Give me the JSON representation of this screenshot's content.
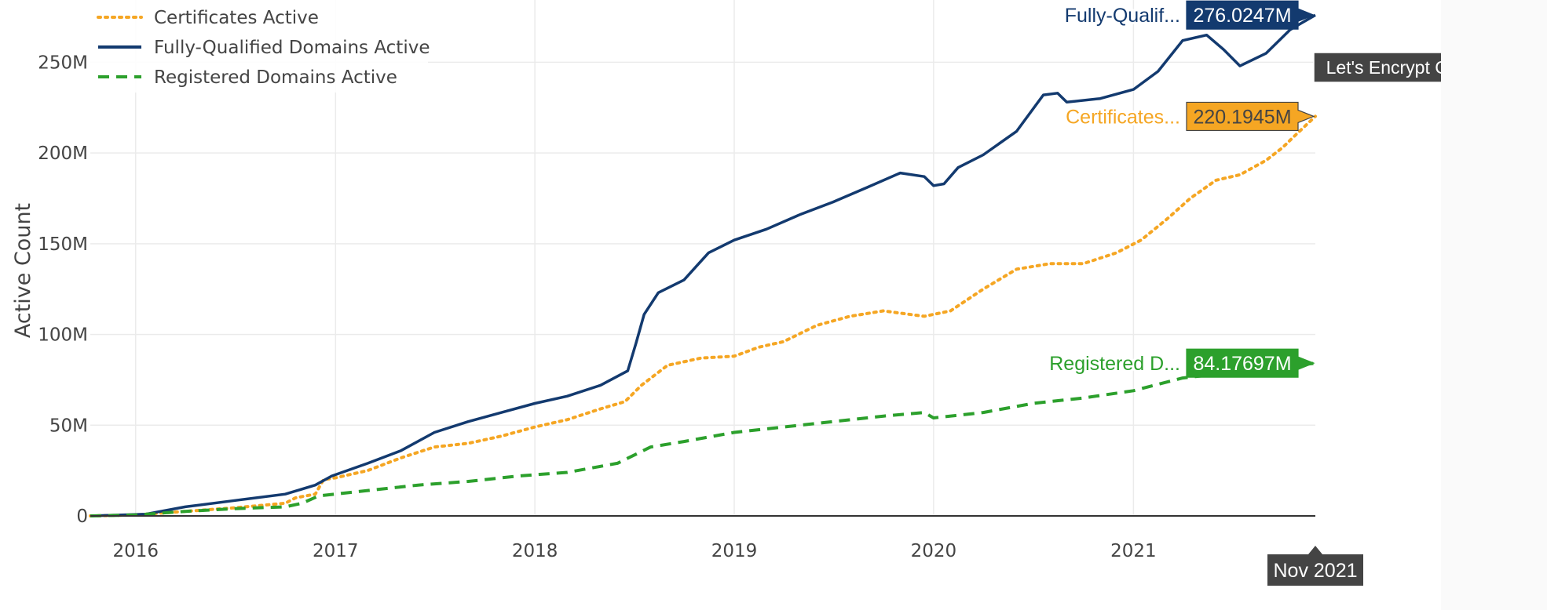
{
  "chart_data": {
    "type": "line",
    "ylabel": "Active Count",
    "xlabel": "",
    "title": "",
    "x_range": [
      "2015-10-10",
      "2021-11-30"
    ],
    "ylim": [
      0,
      280
    ],
    "y_unit": "M",
    "y_ticks": [
      {
        "value": 0,
        "label": "0"
      },
      {
        "value": 50,
        "label": "50M"
      },
      {
        "value": 100,
        "label": "100M"
      },
      {
        "value": 150,
        "label": "150M"
      },
      {
        "value": 200,
        "label": "200M"
      },
      {
        "value": 250,
        "label": "250M"
      }
    ],
    "x_ticks": [
      {
        "date": "2016-01-01",
        "label": "2016"
      },
      {
        "date": "2017-01-01",
        "label": "2017"
      },
      {
        "date": "2018-01-01",
        "label": "2018"
      },
      {
        "date": "2019-01-01",
        "label": "2019"
      },
      {
        "date": "2020-01-01",
        "label": "2020"
      },
      {
        "date": "2021-01-01",
        "label": "2021"
      }
    ],
    "grid": true,
    "legend_position": "top-left",
    "series": [
      {
        "name": "Certificates Active",
        "color": "#f5a623",
        "dash": "dotted",
        "hover_label": "Certificates...",
        "hover_value": "220.1945M",
        "points": [
          [
            "2015-10-10",
            0
          ],
          [
            "2016-01-01",
            0.5
          ],
          [
            "2016-04-01",
            2.5
          ],
          [
            "2016-07-01",
            4.5
          ],
          [
            "2016-10-01",
            7
          ],
          [
            "2016-10-20",
            10
          ],
          [
            "2016-11-25",
            12
          ],
          [
            "2016-12-10",
            20
          ],
          [
            "2017-01-01",
            21
          ],
          [
            "2017-03-01",
            25
          ],
          [
            "2017-05-01",
            32
          ],
          [
            "2017-07-01",
            38
          ],
          [
            "2017-09-01",
            40
          ],
          [
            "2017-11-01",
            44
          ],
          [
            "2018-01-01",
            49
          ],
          [
            "2018-03-01",
            53
          ],
          [
            "2018-05-01",
            59
          ],
          [
            "2018-06-15",
            63
          ],
          [
            "2018-07-15",
            72
          ],
          [
            "2018-09-01",
            83
          ],
          [
            "2018-11-01",
            87
          ],
          [
            "2019-01-01",
            88
          ],
          [
            "2019-02-15",
            93
          ],
          [
            "2019-04-01",
            96
          ],
          [
            "2019-06-01",
            105
          ],
          [
            "2019-08-01",
            110
          ],
          [
            "2019-10-01",
            113
          ],
          [
            "2019-12-15",
            110
          ],
          [
            "2020-02-01",
            113
          ],
          [
            "2020-04-01",
            125
          ],
          [
            "2020-06-01",
            136
          ],
          [
            "2020-08-01",
            139
          ],
          [
            "2020-10-01",
            139
          ],
          [
            "2020-12-01",
            145
          ],
          [
            "2021-01-15",
            152
          ],
          [
            "2021-03-01",
            163
          ],
          [
            "2021-04-15",
            175
          ],
          [
            "2021-06-01",
            185
          ],
          [
            "2021-07-15",
            188
          ],
          [
            "2021-09-01",
            196
          ],
          [
            "2021-10-01",
            203
          ],
          [
            "2021-10-25",
            210
          ],
          [
            "2021-11-30",
            220.19
          ]
        ]
      },
      {
        "name": "Fully-Qualified Domains Active",
        "color": "#133a6f",
        "dash": "solid",
        "hover_label": "Fully-Qualif...",
        "hover_value": "276.0247M",
        "points": [
          [
            "2015-10-10",
            0
          ],
          [
            "2016-01-20",
            1
          ],
          [
            "2016-04-01",
            5
          ],
          [
            "2016-07-01",
            8.5
          ],
          [
            "2016-10-01",
            12
          ],
          [
            "2016-11-25",
            17
          ],
          [
            "2016-12-25",
            22
          ],
          [
            "2017-03-01",
            29
          ],
          [
            "2017-05-01",
            36
          ],
          [
            "2017-07-01",
            46
          ],
          [
            "2017-09-01",
            52
          ],
          [
            "2017-11-01",
            57
          ],
          [
            "2018-01-01",
            62
          ],
          [
            "2018-03-01",
            66
          ],
          [
            "2018-05-01",
            72
          ],
          [
            "2018-06-20",
            80
          ],
          [
            "2018-07-05",
            95
          ],
          [
            "2018-07-20",
            111
          ],
          [
            "2018-08-15",
            123
          ],
          [
            "2018-10-01",
            130
          ],
          [
            "2018-11-15",
            145
          ],
          [
            "2019-01-01",
            152
          ],
          [
            "2019-03-01",
            158
          ],
          [
            "2019-05-01",
            166
          ],
          [
            "2019-07-01",
            173
          ],
          [
            "2019-09-01",
            181
          ],
          [
            "2019-11-01",
            189
          ],
          [
            "2019-12-15",
            187
          ],
          [
            "2020-01-01",
            182
          ],
          [
            "2020-01-20",
            183
          ],
          [
            "2020-02-15",
            192
          ],
          [
            "2020-04-01",
            199
          ],
          [
            "2020-06-01",
            212
          ],
          [
            "2020-07-20",
            232
          ],
          [
            "2020-08-15",
            233
          ],
          [
            "2020-09-01",
            228
          ],
          [
            "2020-11-01",
            230
          ],
          [
            "2021-01-01",
            235
          ],
          [
            "2021-02-15",
            245
          ],
          [
            "2021-04-01",
            262
          ],
          [
            "2021-05-15",
            265
          ],
          [
            "2021-06-15",
            257
          ],
          [
            "2021-07-15",
            248
          ],
          [
            "2021-09-01",
            255
          ],
          [
            "2021-10-15",
            268
          ],
          [
            "2021-11-30",
            276.02
          ]
        ]
      },
      {
        "name": "Registered Domains Active",
        "color": "#2ca02c",
        "dash": "dashed",
        "hover_label": "Registered D...",
        "hover_value": "84.17697M",
        "points": [
          [
            "2015-10-10",
            0
          ],
          [
            "2016-01-01",
            0.5
          ],
          [
            "2016-04-01",
            2.5
          ],
          [
            "2016-07-01",
            4
          ],
          [
            "2016-10-01",
            5
          ],
          [
            "2016-11-01",
            7
          ],
          [
            "2016-12-01",
            11
          ],
          [
            "2017-03-01",
            14
          ],
          [
            "2017-06-01",
            17
          ],
          [
            "2017-09-01",
            19
          ],
          [
            "2017-12-01",
            22
          ],
          [
            "2018-03-01",
            24
          ],
          [
            "2018-06-01",
            29
          ],
          [
            "2018-08-01",
            38
          ],
          [
            "2018-10-01",
            41
          ],
          [
            "2019-01-01",
            46
          ],
          [
            "2019-04-01",
            49
          ],
          [
            "2019-07-01",
            52
          ],
          [
            "2019-10-01",
            55
          ],
          [
            "2019-12-15",
            57
          ],
          [
            "2020-01-01",
            54
          ],
          [
            "2020-04-01",
            57
          ],
          [
            "2020-07-01",
            62
          ],
          [
            "2020-10-01",
            65
          ],
          [
            "2021-01-01",
            69
          ],
          [
            "2021-04-01",
            76
          ],
          [
            "2021-06-01",
            78
          ],
          [
            "2021-08-01",
            80
          ],
          [
            "2021-11-30",
            84.18
          ]
        ]
      }
    ]
  },
  "chart_title_tooltip": "Let's Encrypt Growth",
  "x_hover_label": "Nov 2021"
}
